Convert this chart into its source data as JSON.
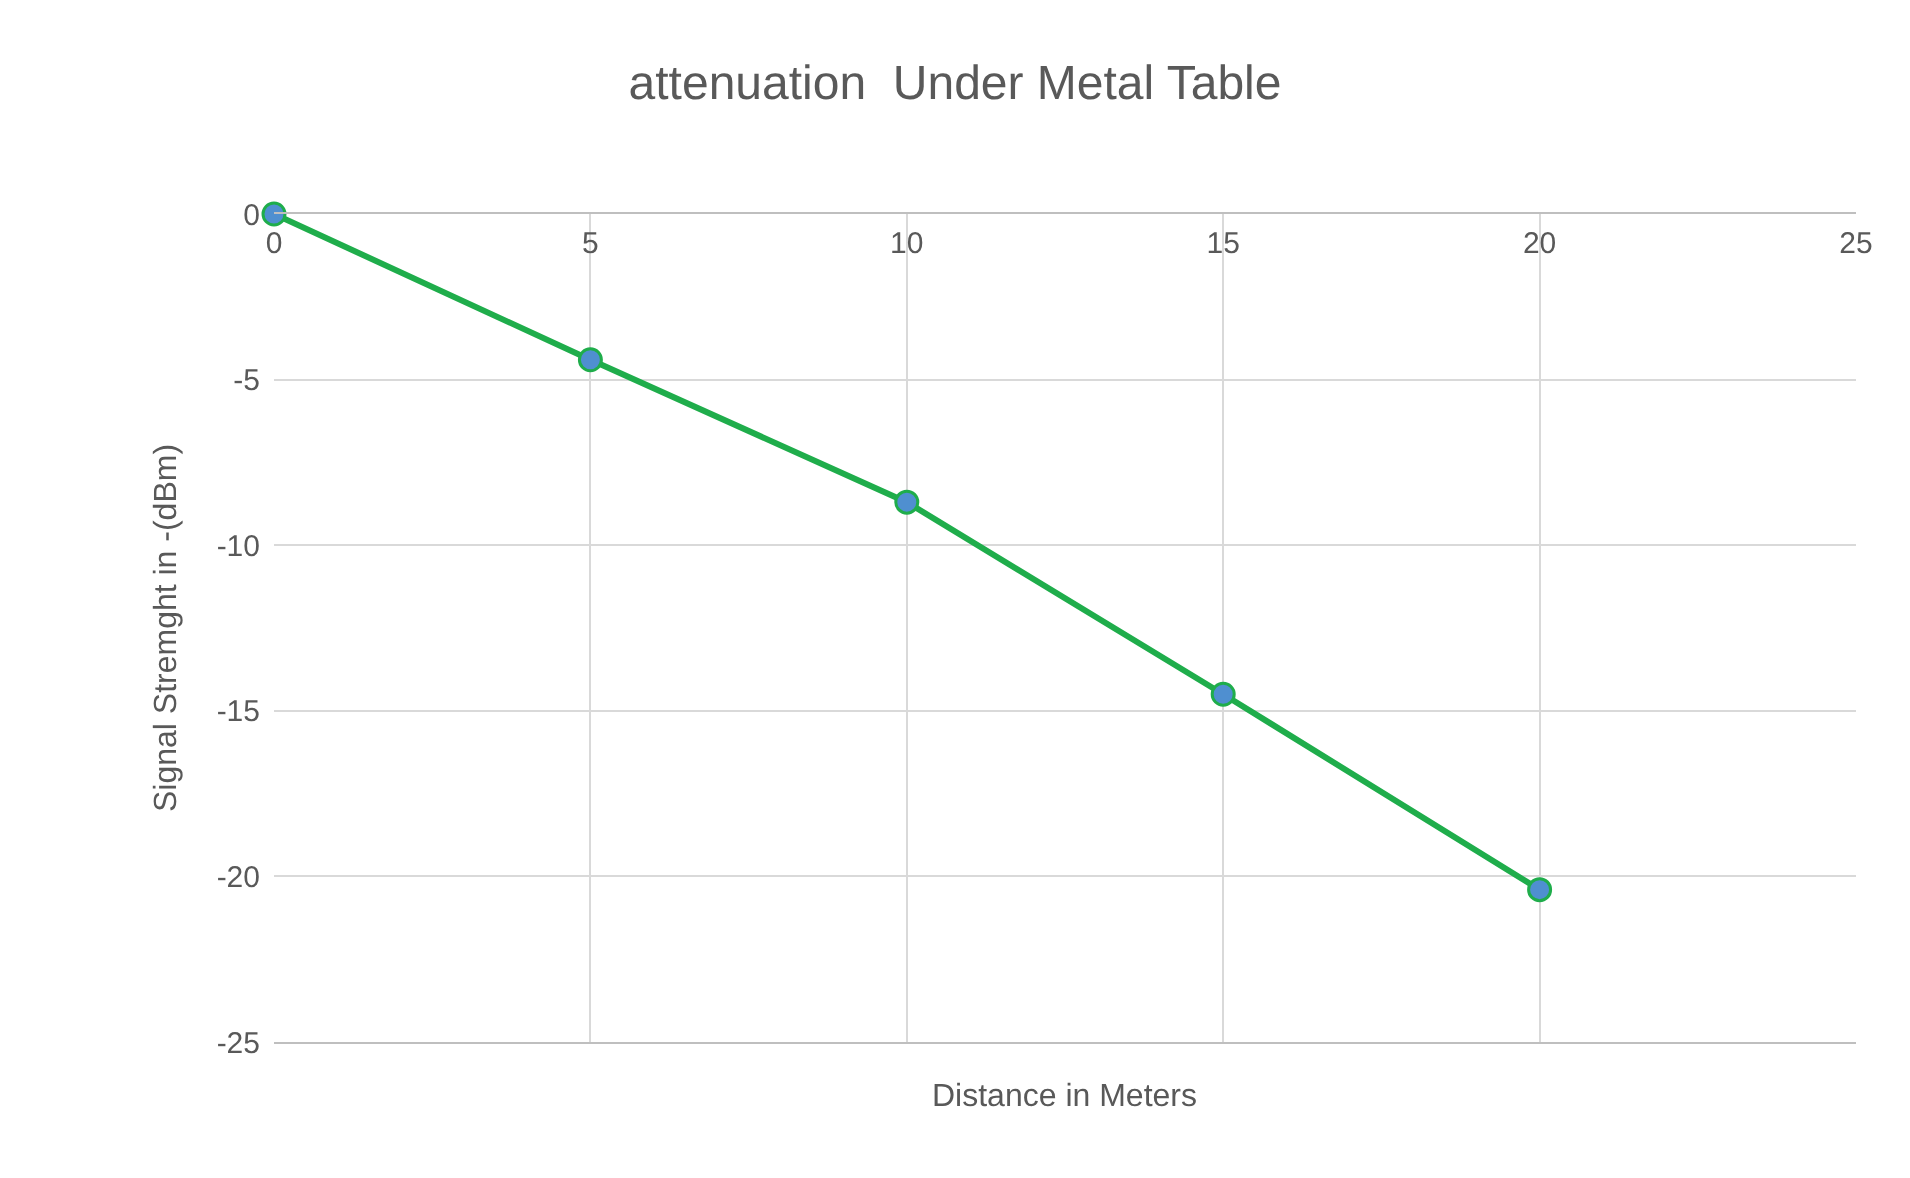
{
  "chart_data": {
    "type": "line",
    "title": "attenuation  Under Metal Table",
    "xlabel": "Distance in Meters",
    "ylabel": "Signal Stremght in -(dBm)",
    "x": [
      0,
      5,
      10,
      15,
      20
    ],
    "series": [
      {
        "color": "#1fad4b",
        "values": [
          0,
          -4.4,
          -8.7,
          -14.5,
          -20.4
        ]
      }
    ],
    "xlim": [
      0,
      25
    ],
    "xticks": [
      0,
      5,
      10,
      15,
      20,
      25
    ],
    "ylim": [
      -25,
      0
    ],
    "yticks": [
      -25,
      -20,
      -15,
      -10,
      -5,
      0
    ],
    "grid": true,
    "marker": "circle",
    "line_style": "solid"
  }
}
